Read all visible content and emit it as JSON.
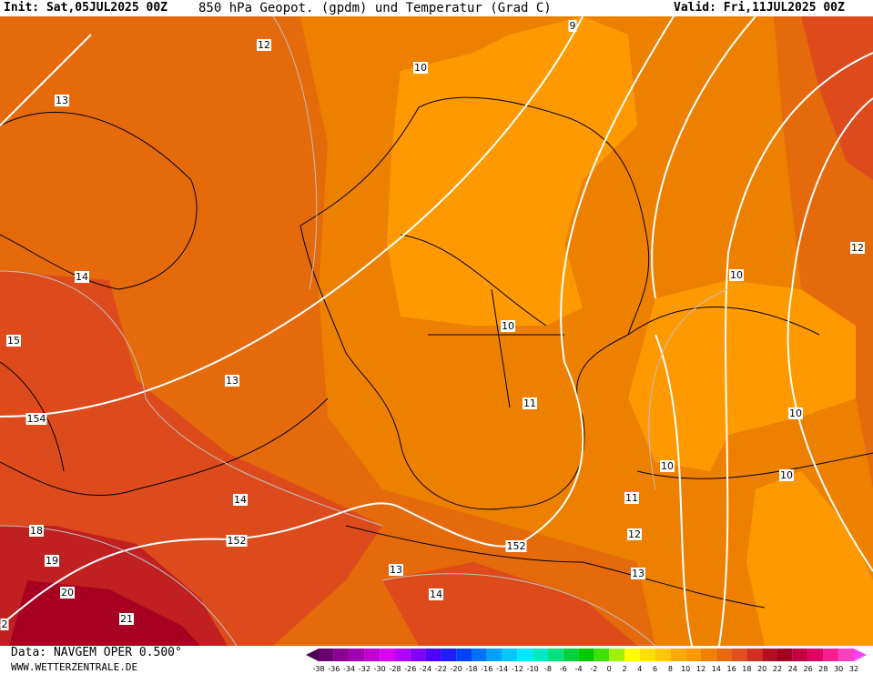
{
  "header": {
    "init": "Init: Sat,05JUL2025 00Z",
    "title": "850 hPa Geopot. (gpdm) und Temperatur (Grad C)",
    "valid": "Valid: Fri,11JUL2025 00Z"
  },
  "footer": {
    "data": "Data: NAVGEM OPER 0.500°",
    "site": "WWW.WETTERZENTRALE.DE"
  },
  "contours": [
    12,
    13,
    10,
    9,
    14,
    15,
    154,
    13,
    10,
    12,
    10,
    11,
    10,
    10,
    10,
    14,
    152,
    11,
    12,
    18,
    19,
    20,
    21,
    13,
    14,
    13,
    152,
    2
  ],
  "scale": {
    "labels": [
      -38,
      -36,
      -34,
      -32,
      -30,
      -28,
      -26,
      -24,
      -22,
      -20,
      -18,
      -16,
      -14,
      -12,
      -10,
      -8,
      -6,
      -4,
      -2,
      0,
      2,
      4,
      6,
      8,
      10,
      12,
      14,
      16,
      18,
      20,
      22,
      24,
      26,
      28,
      30,
      32
    ],
    "colors": [
      "#4b0050",
      "#6a0070",
      "#8a0090",
      "#a000b0",
      "#c000d0",
      "#d800f0",
      "#b000ff",
      "#8000ff",
      "#5000ff",
      "#2020ff",
      "#0040ff",
      "#0070ff",
      "#00a0ff",
      "#00c8ff",
      "#00e8ff",
      "#00e8c0",
      "#00e080",
      "#00d040",
      "#00c800",
      "#40e000",
      "#a0f000",
      "#ffff00",
      "#ffe000",
      "#ffc800",
      "#ffaa00",
      "#ff9900",
      "#f08000",
      "#e86a10",
      "#e05020",
      "#d03020",
      "#b01020",
      "#a00020",
      "#c00040",
      "#e00060",
      "#ff2090",
      "#ff40c0",
      "#ff40ff"
    ]
  }
}
